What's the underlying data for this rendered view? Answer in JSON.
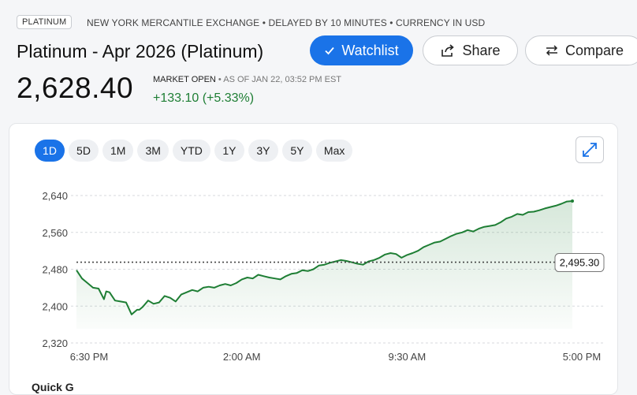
{
  "header": {
    "tag": "PLATINUM",
    "meta": "NEW YORK MERCANTILE EXCHANGE • DELAYED BY 10 MINUTES  • CURRENCY IN USD",
    "title": "Platinum - Apr 2026 (Platinum)"
  },
  "buttons": {
    "watchlist": "Watchlist",
    "share": "Share",
    "compare": "Compare"
  },
  "quote": {
    "price": "2,628.40",
    "status": "MARKET OPEN",
    "as_of": " • AS OF JAN 22, 03:52 PM EST",
    "change": "+133.10 (+5.33%)"
  },
  "ranges": [
    "1D",
    "5D",
    "1M",
    "3M",
    "YTD",
    "1Y",
    "3Y",
    "5Y",
    "Max"
  ],
  "active_range": "1D",
  "footer": {
    "label": "Quick G"
  },
  "colors": {
    "accent": "#1a73e8",
    "up": "#1e7e34"
  },
  "chart_data": {
    "type": "area",
    "title": "",
    "xlabel": "",
    "ylabel": "",
    "ylim": [
      2320,
      2640
    ],
    "yticks": [
      2640,
      2560,
      2480,
      2400,
      2320
    ],
    "ytick_labels": [
      "2,640",
      "2,560",
      "2,480",
      "2,400",
      "2,320"
    ],
    "xticks": [
      0,
      7.5,
      15,
      22.5
    ],
    "xtick_labels": [
      "6:30 PM",
      "2:00 AM",
      "9:30 AM",
      "5:00 PM"
    ],
    "x_unit": "hours since 6:30 PM",
    "reference_line": {
      "value": 2495.3,
      "label": "2,495.30"
    },
    "grid": true,
    "series": [
      {
        "x": [
          0,
          0.25,
          0.5,
          0.75,
          1.0,
          1.25,
          1.35,
          1.5,
          1.75,
          2.0,
          2.25,
          2.5,
          2.75,
          2.85,
          3.0,
          3.25,
          3.5,
          3.75,
          4.0,
          4.25,
          4.5,
          4.75,
          5.0,
          5.25,
          5.5,
          5.75,
          6.0,
          6.25,
          6.5,
          6.75,
          7.0,
          7.25,
          7.5,
          7.75,
          8.0,
          8.25,
          8.5,
          8.75,
          9.0,
          9.25,
          9.5,
          9.75,
          10.0,
          10.25,
          10.5,
          10.75,
          11.0,
          11.25,
          11.5,
          11.75,
          12.0,
          12.25,
          12.5,
          12.75,
          13.0,
          13.25,
          13.5,
          13.75,
          14.0,
          14.25,
          14.5,
          14.75,
          15.0,
          15.25,
          15.5,
          15.75,
          16.0,
          16.25,
          16.5,
          16.75,
          17.0,
          17.25,
          17.5,
          17.75,
          18.0,
          18.25,
          18.5,
          18.75,
          19.0,
          19.25,
          19.5,
          19.75,
          20.0,
          20.25,
          20.5,
          20.75,
          21.0,
          21.25,
          21.5,
          21.75,
          22.0,
          22.25,
          22.5
        ],
        "values": [
          2478,
          2460,
          2450,
          2440,
          2438,
          2415,
          2432,
          2430,
          2412,
          2410,
          2408,
          2382,
          2392,
          2392,
          2398,
          2412,
          2405,
          2408,
          2422,
          2418,
          2410,
          2425,
          2430,
          2435,
          2432,
          2440,
          2442,
          2440,
          2445,
          2448,
          2445,
          2450,
          2458,
          2462,
          2460,
          2468,
          2465,
          2462,
          2460,
          2458,
          2465,
          2470,
          2472,
          2478,
          2476,
          2480,
          2488,
          2490,
          2494,
          2497,
          2500,
          2498,
          2495,
          2492,
          2490,
          2497,
          2500,
          2505,
          2512,
          2515,
          2513,
          2505,
          2511,
          2515,
          2520,
          2528,
          2533,
          2538,
          2540,
          2546,
          2552,
          2557,
          2560,
          2565,
          2562,
          2568,
          2572,
          2574,
          2576,
          2582,
          2590,
          2594,
          2600,
          2598,
          2604,
          2605,
          2608,
          2612,
          2615,
          2618,
          2622,
          2627,
          2628
        ]
      }
    ]
  }
}
